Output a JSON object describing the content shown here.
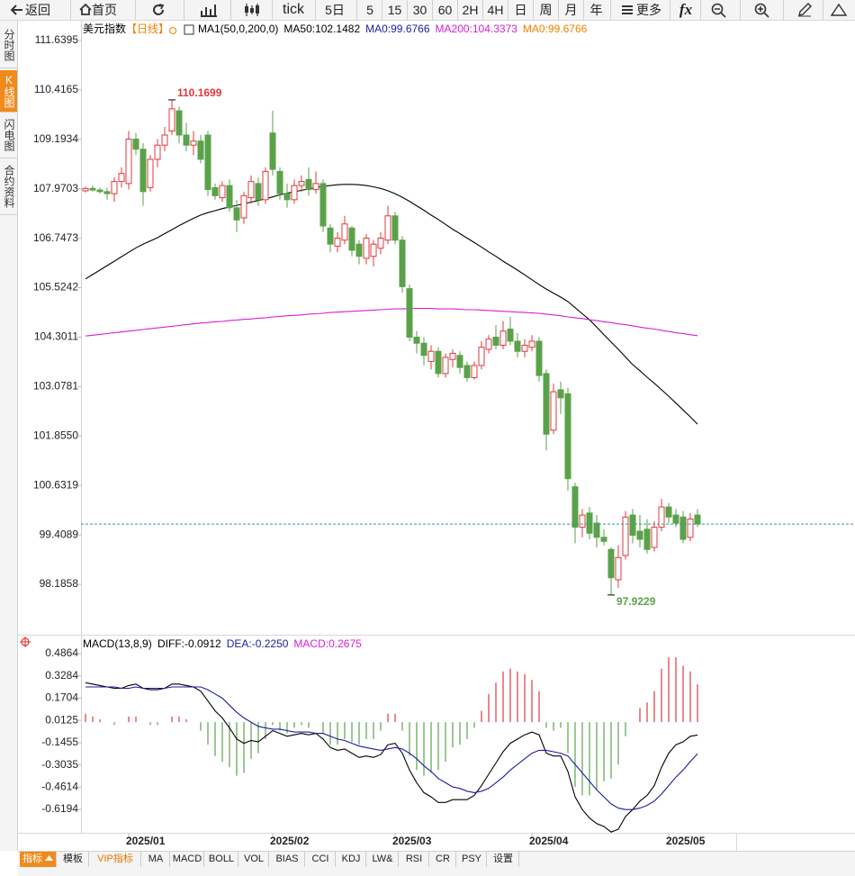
{
  "toolbar": {
    "items": [
      "返回",
      "首页",
      "tick",
      "5日",
      "5",
      "15",
      "30",
      "60",
      "2H",
      "4H",
      "日",
      "周",
      "月",
      "年",
      "更多",
      "fx"
    ]
  },
  "sidebar": {
    "tabs": [
      "分时图",
      "K线图",
      "闪电图",
      "合约资料"
    ]
  },
  "bottom_tabs": {
    "items": [
      "指标",
      "模板",
      "VIP指标",
      "MA",
      "MACD",
      "BOLL",
      "VOL",
      "BIAS",
      "CCI",
      "KDJ",
      "LW&",
      "RSI",
      "CR",
      "PSY",
      "设置"
    ]
  },
  "chart_data": [
    {
      "type": "candlestick",
      "title": "美元指数",
      "period": "【日线】",
      "legend": [
        {
          "text": "MA1(50,0,200,0)",
          "color": "#000000"
        },
        {
          "text": "MA50:102.1482",
          "color": "#000000"
        },
        {
          "text": "MA0:99.6766",
          "color": "#1c1ca0"
        },
        {
          "text": "MA200:104.3373",
          "color": "#d81ed8"
        },
        {
          "text": "MA0:99.6766",
          "color": "#f08000"
        }
      ],
      "categories": [
        null,
        null,
        null,
        null,
        null,
        null,
        "2025/01",
        null,
        null,
        null,
        null,
        null,
        null,
        null,
        null,
        null,
        null,
        null,
        null,
        null,
        null,
        null,
        null,
        null,
        null,
        null,
        "2025/02",
        null,
        null,
        null,
        null,
        null,
        null,
        null,
        null,
        null,
        null,
        null,
        null,
        null,
        null,
        null,
        null,
        "2025/03",
        null,
        null,
        null,
        null,
        null,
        null,
        null,
        null,
        null,
        null,
        null,
        null,
        null,
        null,
        null,
        null,
        null,
        null,
        "2025/04",
        null,
        null,
        null,
        null,
        null,
        null,
        null,
        null,
        null,
        null,
        null,
        null,
        null,
        null,
        null,
        null,
        null,
        null,
        "2025/05",
        null,
        null,
        null,
        null
      ],
      "open": [
        107.92,
        107.98,
        107.94,
        107.9,
        107.85,
        108.15,
        108.1,
        109.2,
        108.95,
        108.0,
        108.7,
        109.05,
        109.4,
        109.9,
        109.3,
        109.05,
        109.15,
        109.3,
        108.0,
        107.75,
        108.05,
        107.5,
        107.25,
        107.75,
        108.1,
        107.7,
        109.35,
        108.4,
        107.85,
        107.7,
        108.05,
        108.2,
        107.95,
        108.1,
        107.0,
        106.55,
        106.7,
        107.0,
        106.6,
        106.25,
        106.3,
        106.5,
        106.7,
        107.3,
        106.7,
        105.5,
        104.3,
        104.15,
        103.7,
        103.95,
        103.4,
        103.75,
        103.85,
        103.6,
        103.3,
        103.6,
        104.0,
        104.3,
        104.1,
        104.5,
        104.2,
        103.95,
        104.05,
        104.2,
        103.4,
        102.0,
        103.0,
        102.9,
        100.6,
        99.6,
        99.95,
        99.7,
        99.35,
        99.05,
        98.3,
        98.9,
        99.9,
        99.5,
        99.55,
        99.1,
        99.6,
        100.1,
        99.9,
        99.85,
        99.35,
        99.9
      ],
      "high": [
        108.02,
        108.05,
        108.0,
        108.0,
        108.25,
        108.5,
        109.4,
        109.35,
        109.1,
        108.8,
        109.2,
        109.5,
        110.1699,
        110.0,
        109.6,
        109.4,
        109.3,
        109.4,
        108.1,
        108.15,
        108.2,
        107.7,
        107.9,
        108.3,
        108.25,
        108.5,
        109.9,
        108.5,
        108.1,
        108.2,
        108.3,
        108.5,
        108.4,
        108.2,
        107.1,
        106.9,
        107.3,
        107.05,
        106.7,
        106.85,
        106.7,
        106.9,
        107.55,
        107.4,
        106.8,
        105.6,
        104.45,
        104.3,
        104.1,
        104.05,
        103.9,
        104.0,
        103.95,
        103.7,
        103.7,
        104.2,
        104.35,
        104.6,
        104.7,
        104.8,
        104.4,
        104.25,
        104.35,
        104.3,
        103.5,
        103.15,
        103.2,
        103.05,
        100.7,
        100.05,
        100.1,
        99.9,
        99.55,
        99.1,
        99.15,
        100.0,
        100.05,
        99.9,
        99.8,
        99.75,
        100.3,
        100.2,
        100.05,
        100.0,
        99.95,
        100.05
      ],
      "low": [
        107.88,
        107.9,
        107.85,
        107.7,
        107.65,
        108.0,
        107.95,
        108.8,
        107.55,
        107.9,
        108.5,
        108.9,
        109.3,
        109.1,
        108.9,
        108.8,
        108.6,
        107.8,
        107.7,
        107.65,
        107.4,
        106.9,
        107.1,
        107.6,
        107.55,
        107.6,
        108.3,
        107.7,
        107.5,
        107.6,
        107.9,
        107.8,
        107.85,
        106.9,
        106.4,
        106.4,
        106.6,
        106.3,
        106.1,
        106.1,
        106.05,
        106.35,
        106.6,
        106.6,
        105.4,
        104.2,
        103.9,
        103.6,
        103.5,
        103.3,
        103.3,
        103.55,
        103.4,
        103.2,
        103.25,
        103.5,
        103.9,
        104.0,
        104.0,
        104.1,
        103.8,
        103.8,
        103.95,
        103.2,
        101.5,
        101.9,
        102.4,
        100.5,
        99.2,
        99.35,
        99.3,
        99.1,
        99.15,
        97.9229,
        98.1,
        98.8,
        99.2,
        99.1,
        98.95,
        99.0,
        99.5,
        99.7,
        99.6,
        99.2,
        99.25,
        99.6
      ],
      "close": [
        107.98,
        107.94,
        107.9,
        107.85,
        108.15,
        108.35,
        109.2,
        108.95,
        107.9,
        108.7,
        109.05,
        109.3,
        109.95,
        109.3,
        109.05,
        109.15,
        108.7,
        107.95,
        107.8,
        108.05,
        107.5,
        107.2,
        107.8,
        108.15,
        107.7,
        108.4,
        108.45,
        107.85,
        107.7,
        108.05,
        108.15,
        107.95,
        108.1,
        107.05,
        106.6,
        106.75,
        107.1,
        106.45,
        106.3,
        106.75,
        106.6,
        106.75,
        107.3,
        106.7,
        105.55,
        104.3,
        104.15,
        103.85,
        103.95,
        103.4,
        103.8,
        103.9,
        103.55,
        103.3,
        103.6,
        104.05,
        104.25,
        104.1,
        104.45,
        104.2,
        103.95,
        104.1,
        104.2,
        103.35,
        101.9,
        102.95,
        102.8,
        100.8,
        99.6,
        99.9,
        99.45,
        99.35,
        99.25,
        98.35,
        98.85,
        99.85,
        99.4,
        99.3,
        99.05,
        99.6,
        100.1,
        99.85,
        99.7,
        99.3,
        99.8,
        99.6766
      ],
      "up_color": "#e0383c",
      "down_color": "#5aa24a",
      "last_line_color": "#2a9aa0",
      "series": [
        {
          "color": "#000000",
          "values": [
            105.74,
            105.85,
            105.96,
            106.07,
            106.18,
            106.29,
            106.4,
            106.51,
            106.6,
            106.68,
            106.76,
            106.86,
            106.96,
            107.06,
            107.15,
            107.24,
            107.32,
            107.38,
            107.43,
            107.48,
            107.52,
            107.56,
            107.6,
            107.64,
            107.68,
            107.72,
            107.77,
            107.82,
            107.86,
            107.9,
            107.93,
            107.97,
            108.0,
            108.03,
            108.05,
            108.07,
            108.08,
            108.08,
            108.07,
            108.05,
            108.02,
            107.98,
            107.92,
            107.85,
            107.76,
            107.66,
            107.55,
            107.44,
            107.32,
            107.21,
            107.09,
            106.97,
            106.86,
            106.75,
            106.64,
            106.53,
            106.41,
            106.3,
            106.18,
            106.07,
            105.96,
            105.84,
            105.72,
            105.6,
            105.49,
            105.39,
            105.29,
            105.18,
            105.03,
            104.88,
            104.73,
            104.55,
            104.36,
            104.18,
            104.0,
            103.81,
            103.62,
            103.47,
            103.31,
            103.16,
            103.0,
            102.84,
            102.67,
            102.5,
            102.33,
            102.1482
          ]
        },
        {
          "color": "#d81ed8",
          "values": [
            104.33,
            104.35,
            104.37,
            104.39,
            104.41,
            104.43,
            104.45,
            104.47,
            104.49,
            104.51,
            104.53,
            104.55,
            104.57,
            104.59,
            104.61,
            104.63,
            104.65,
            104.66,
            104.68,
            104.69,
            104.71,
            104.72,
            104.74,
            104.75,
            104.77,
            104.78,
            104.8,
            104.81,
            104.83,
            104.84,
            104.85,
            104.87,
            104.88,
            104.89,
            104.91,
            104.92,
            104.93,
            104.94,
            104.95,
            104.96,
            104.97,
            104.98,
            104.99,
            105.0,
            105.0,
            105.01,
            105.01,
            105.01,
            105.01,
            105.0,
            105.0,
            105.0,
            104.99,
            104.98,
            104.98,
            104.97,
            104.96,
            104.95,
            104.94,
            104.93,
            104.92,
            104.91,
            104.9,
            104.89,
            104.87,
            104.85,
            104.83,
            104.8,
            104.78,
            104.76,
            104.73,
            104.71,
            104.68,
            104.66,
            104.63,
            104.61,
            104.58,
            104.55,
            104.52,
            104.5,
            104.47,
            104.44,
            104.41,
            104.39,
            104.36,
            104.3373
          ]
        }
      ],
      "ylim": [
        96.94,
        112.15
      ],
      "yticks": [
        111.6395,
        110.4165,
        109.1934,
        107.9703,
        106.7473,
        105.5242,
        104.3011,
        103.0781,
        {
          "value": 101.855,
          "label": "101.8550"
        },
        100.6319,
        99.4089,
        98.1858
      ]
    },
    {
      "type": "macd",
      "title": "MACD(13,8,9)",
      "legend": [
        {
          "text": "DIFF:-0.0912",
          "color": "#000000"
        },
        {
          "text": "DEA:-0.2250",
          "color": "#1c1ca0"
        },
        {
          "text": "MACD:0.2675",
          "color": "#d81ed8"
        }
      ],
      "diff": {
        "color": "#000000",
        "values": [
          0.28,
          0.27,
          0.26,
          0.25,
          0.24,
          0.24,
          0.26,
          0.27,
          0.24,
          0.23,
          0.23,
          0.24,
          0.27,
          0.27,
          0.26,
          0.25,
          0.22,
          0.15,
          0.08,
          0.03,
          -0.04,
          -0.12,
          -0.15,
          -0.13,
          -0.14,
          -0.1,
          -0.06,
          -0.08,
          -0.1,
          -0.09,
          -0.08,
          -0.09,
          -0.08,
          -0.12,
          -0.18,
          -0.2,
          -0.19,
          -0.22,
          -0.25,
          -0.24,
          -0.25,
          -0.23,
          -0.16,
          -0.15,
          -0.22,
          -0.34,
          -0.43,
          -0.5,
          -0.53,
          -0.57,
          -0.57,
          -0.55,
          -0.55,
          -0.55,
          -0.52,
          -0.45,
          -0.37,
          -0.29,
          -0.21,
          -0.15,
          -0.12,
          -0.09,
          -0.07,
          -0.09,
          -0.22,
          -0.24,
          -0.24,
          -0.35,
          -0.53,
          -0.62,
          -0.68,
          -0.72,
          -0.74,
          -0.78,
          -0.76,
          -0.67,
          -0.62,
          -0.56,
          -0.52,
          -0.45,
          -0.32,
          -0.22,
          -0.16,
          -0.14,
          -0.1,
          -0.0912
        ]
      },
      "dea": {
        "color": "#1c1ca0",
        "values": [
          0.25,
          0.25,
          0.25,
          0.25,
          0.25,
          0.24,
          0.24,
          0.25,
          0.24,
          0.24,
          0.24,
          0.24,
          0.25,
          0.25,
          0.25,
          0.25,
          0.25,
          0.23,
          0.2,
          0.17,
          0.12,
          0.07,
          0.03,
          0.0,
          -0.03,
          -0.04,
          -0.05,
          -0.05,
          -0.06,
          -0.07,
          -0.07,
          -0.07,
          -0.08,
          -0.08,
          -0.1,
          -0.12,
          -0.13,
          -0.15,
          -0.17,
          -0.18,
          -0.19,
          -0.2,
          -0.19,
          -0.18,
          -0.19,
          -0.22,
          -0.26,
          -0.31,
          -0.35,
          -0.4,
          -0.43,
          -0.46,
          -0.47,
          -0.49,
          -0.5,
          -0.49,
          -0.47,
          -0.43,
          -0.39,
          -0.34,
          -0.3,
          -0.26,
          -0.22,
          -0.2,
          -0.2,
          -0.21,
          -0.22,
          -0.24,
          -0.3,
          -0.36,
          -0.42,
          -0.48,
          -0.53,
          -0.58,
          -0.61,
          -0.62,
          -0.62,
          -0.61,
          -0.59,
          -0.56,
          -0.51,
          -0.45,
          -0.39,
          -0.34,
          -0.28,
          -0.225
        ]
      },
      "macd": {
        "up_color": "#e0383c",
        "down_color": "#5aa24a",
        "values": [
          0.06,
          0.04,
          0.02,
          0.0,
          -0.02,
          0.0,
          0.04,
          0.04,
          0.0,
          -0.02,
          -0.02,
          0.0,
          0.04,
          0.04,
          0.02,
          0.0,
          -0.06,
          -0.16,
          -0.24,
          -0.28,
          -0.32,
          -0.38,
          -0.36,
          -0.26,
          -0.22,
          -0.12,
          -0.02,
          -0.06,
          -0.08,
          -0.04,
          -0.02,
          -0.04,
          0.0,
          -0.08,
          -0.16,
          -0.16,
          -0.12,
          -0.14,
          -0.16,
          -0.12,
          -0.12,
          -0.06,
          0.06,
          0.06,
          -0.06,
          -0.24,
          -0.34,
          -0.38,
          -0.36,
          -0.34,
          -0.28,
          -0.18,
          -0.16,
          -0.12,
          -0.04,
          0.08,
          0.2,
          0.28,
          0.36,
          0.38,
          0.36,
          0.34,
          0.3,
          0.22,
          -0.04,
          -0.06,
          -0.04,
          -0.22,
          -0.46,
          -0.52,
          -0.52,
          -0.48,
          -0.42,
          -0.4,
          -0.3,
          -0.1,
          0.0,
          0.1,
          0.14,
          0.22,
          0.38,
          0.46,
          0.46,
          0.4,
          0.36,
          0.2675
        ]
      },
      "ylim": [
        -0.785,
        0.614
      ],
      "yticks": [
        0.4864,
        0.3284,
        0.1704,
        0.0125,
        -0.1455,
        -0.3035,
        -0.4614,
        -0.6194
      ]
    }
  ]
}
